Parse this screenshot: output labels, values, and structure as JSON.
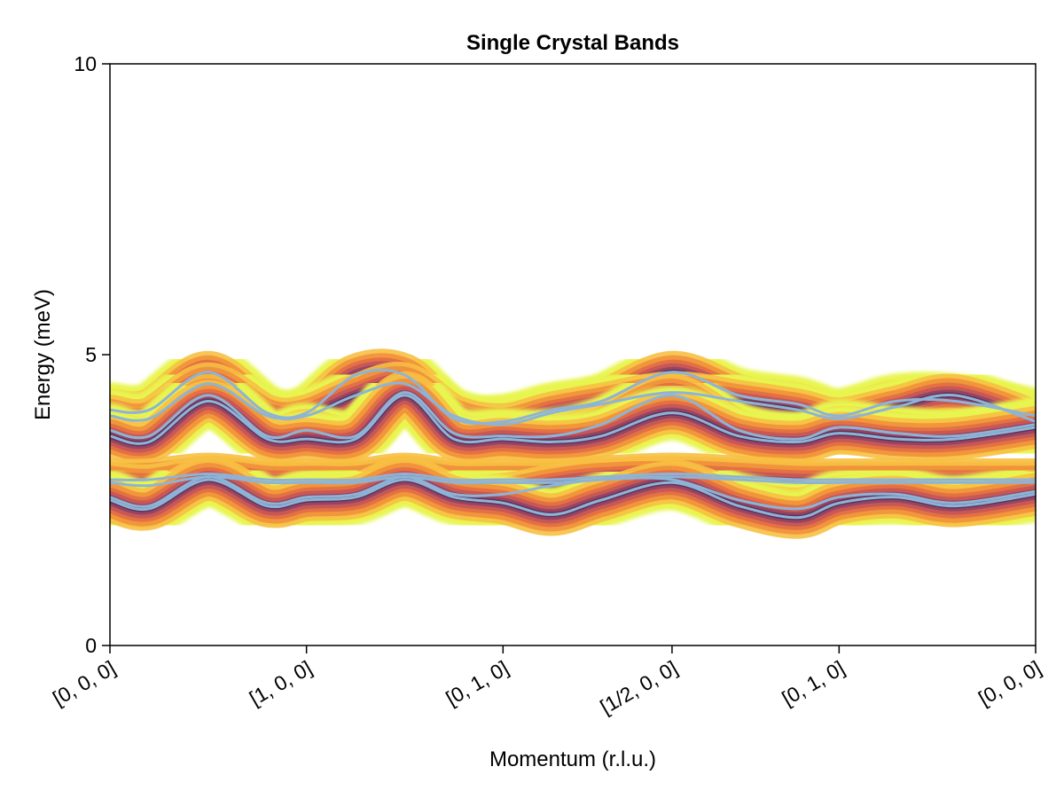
{
  "chart_data": {
    "type": "heatmap",
    "title": "Single Crystal Bands",
    "xlabel": "Momentum (r.l.u.)",
    "ylabel": "Energy (meV)",
    "ylim": [
      0,
      10
    ],
    "y_ticks": [
      {
        "value": 0,
        "label": "0"
      },
      {
        "value": 5,
        "label": "5"
      },
      {
        "value": 10,
        "label": "10"
      }
    ],
    "x_ticks": [
      {
        "value": 0,
        "label": "[0, 0, 0]"
      },
      {
        "value": 1,
        "label": "[1, 0, 0]"
      },
      {
        "value": 2,
        "label": "[0, 1, 0]"
      },
      {
        "value": 2.86,
        "label": "[1/2, 0, 0]"
      },
      {
        "value": 3.71,
        "label": "[0, 1, 0]"
      },
      {
        "value": 4.71,
        "label": "[0, 0, 0]"
      }
    ],
    "xlim": [
      0,
      4.71
    ],
    "grid": false,
    "intensity_colormap": [
      "#e8f550",
      "#f7c042",
      "#f08a3a",
      "#d9534a",
      "#a33a6c",
      "#4a2a78",
      "#1f1a52"
    ],
    "band_line_color": "#8db4d6",
    "series": [
      {
        "x": [
          0,
          0.2,
          0.5,
          0.8,
          1.0,
          1.25,
          1.5,
          1.75,
          2.0,
          2.25,
          2.5,
          2.86,
          3.2,
          3.5,
          3.71,
          4.0,
          4.3,
          4.71
        ],
        "y": [
          4.05,
          4.05,
          4.7,
          4.0,
          4.0,
          4.65,
          4.65,
          3.9,
          3.85,
          4.05,
          4.2,
          4.7,
          4.3,
          4.15,
          3.95,
          4.2,
          4.2,
          3.95
        ]
      },
      {
        "x": [
          0,
          0.2,
          0.5,
          0.8,
          1.0,
          1.25,
          1.5,
          1.75,
          2.0,
          2.25,
          2.5,
          2.86,
          3.2,
          3.5,
          3.71,
          4.0,
          4.3,
          4.71
        ],
        "y": [
          3.95,
          3.9,
          4.5,
          3.95,
          3.95,
          4.3,
          4.5,
          3.95,
          3.8,
          4.0,
          4.15,
          4.35,
          4.2,
          4.05,
          3.9,
          4.1,
          4.3,
          3.85
        ]
      },
      {
        "x": [
          0,
          0.2,
          0.5,
          0.8,
          1.0,
          1.25,
          1.5,
          1.75,
          2.0,
          2.25,
          2.5,
          2.86,
          3.2,
          3.5,
          3.71,
          4.0,
          4.3,
          4.71
        ],
        "y": [
          3.7,
          3.6,
          4.3,
          3.6,
          3.7,
          3.6,
          4.35,
          3.65,
          3.6,
          3.6,
          3.8,
          4.3,
          3.7,
          3.55,
          3.75,
          3.65,
          3.6,
          3.8
        ]
      },
      {
        "x": [
          0,
          0.2,
          0.5,
          0.8,
          1.0,
          1.25,
          1.5,
          1.75,
          2.0,
          2.25,
          2.5,
          2.86,
          3.2,
          3.5,
          3.71,
          4.0,
          4.3,
          4.71
        ],
        "y": [
          3.6,
          3.5,
          4.2,
          3.55,
          3.55,
          3.55,
          4.3,
          3.55,
          3.55,
          3.5,
          3.6,
          4.0,
          3.6,
          3.5,
          3.65,
          3.55,
          3.55,
          3.75
        ]
      },
      {
        "x": [
          0,
          0.2,
          0.5,
          0.8,
          1.0,
          1.25,
          1.5,
          1.75,
          2.0,
          2.25,
          2.5,
          2.86,
          3.2,
          3.5,
          3.71,
          4.0,
          4.3,
          4.71
        ],
        "y": [
          2.85,
          2.85,
          2.95,
          2.85,
          2.85,
          2.85,
          2.95,
          2.85,
          2.85,
          2.85,
          2.9,
          2.95,
          2.9,
          2.85,
          2.85,
          2.85,
          2.85,
          2.85
        ]
      },
      {
        "x": [
          0,
          0.2,
          0.5,
          0.8,
          1.0,
          1.25,
          1.5,
          1.75,
          2.0,
          2.25,
          2.5,
          2.86,
          3.2,
          3.5,
          3.71,
          4.0,
          4.3,
          4.71
        ],
        "y": [
          2.8,
          2.75,
          2.9,
          2.8,
          2.8,
          2.8,
          2.9,
          2.8,
          2.8,
          2.8,
          2.85,
          2.9,
          2.85,
          2.8,
          2.8,
          2.8,
          2.8,
          2.8
        ]
      },
      {
        "x": [
          0,
          0.2,
          0.5,
          0.8,
          1.0,
          1.25,
          1.5,
          1.75,
          2.0,
          2.25,
          2.5,
          2.86,
          3.2,
          3.5,
          3.71,
          4.0,
          4.3,
          4.71
        ],
        "y": [
          2.55,
          2.4,
          2.9,
          2.45,
          2.55,
          2.6,
          2.9,
          2.6,
          2.6,
          2.75,
          2.85,
          2.85,
          2.5,
          2.35,
          2.55,
          2.6,
          2.45,
          2.65
        ]
      },
      {
        "x": [
          0,
          0.2,
          0.5,
          0.8,
          1.0,
          1.25,
          1.5,
          1.75,
          2.0,
          2.25,
          2.5,
          2.86,
          3.2,
          3.5,
          3.71,
          4.0,
          4.3,
          4.71
        ],
        "y": [
          2.5,
          2.35,
          2.85,
          2.4,
          2.5,
          2.55,
          2.85,
          2.55,
          2.45,
          2.25,
          2.5,
          2.8,
          2.4,
          2.2,
          2.45,
          2.55,
          2.4,
          2.6
        ]
      }
    ]
  }
}
